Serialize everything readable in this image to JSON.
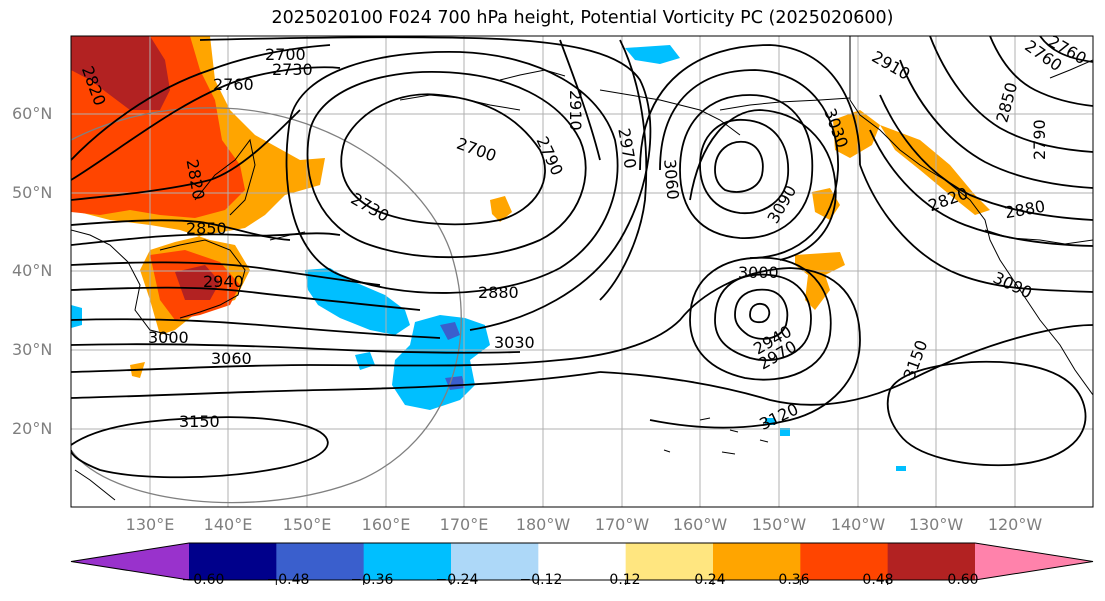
{
  "title": "2025020100 F024 700 hPa height, Potential Vorticity PC (2025020600)",
  "lat_labels": [
    "60°N",
    "50°N",
    "40°N",
    "30°N",
    "20°N"
  ],
  "lon_labels": [
    "130°E",
    "140°E",
    "150°E",
    "160°E",
    "170°E",
    "180°W",
    "170°W",
    "160°W",
    "150°W",
    "140°W",
    "130°W",
    "120°W"
  ],
  "colorbar": {
    "tick_labels": [
      "−0.60",
      "−0.48",
      "−0.36",
      "−0.24",
      "−0.12",
      "0.12",
      "0.24",
      "0.36",
      "0.48",
      "0.60"
    ],
    "colors": [
      "#9932cc",
      "#00008b",
      "#3a5fcd",
      "#00bfff",
      "#add8f8",
      "#ffffff",
      "#ffe680",
      "#ffa500",
      "#ff4500",
      "#b22222",
      "#ff82ab"
    ]
  },
  "contour_labels": {
    "c2700a": "2700",
    "c2730a": "2730",
    "c2760a": "2760",
    "c2820a": "2820",
    "c2820b": "2820",
    "c2850a": "2850",
    "c2940a": "2940",
    "c3000a": "3000",
    "c3060a": "3060",
    "c3150a": "3150",
    "c2700b": "2700",
    "c2730b": "2730",
    "c2790a": "2790",
    "c2880a": "2880",
    "c3030a": "3030",
    "c2910a": "2910",
    "c2970a": "2970",
    "c3060b": "3060",
    "c3030b": "3030",
    "c3090a": "3090",
    "c3000b": "3000",
    "c2940b": "2940",
    "c2970b": "2970",
    "c3120a": "3120",
    "c2910b": "2910",
    "c2850b": "2850",
    "c2760b": "2760",
    "c2790b": "2790",
    "c2820c": "2820",
    "c2880b": "2880",
    "c3090b": "3090",
    "c3150b": "3150",
    "c2760c": "2760"
  }
}
